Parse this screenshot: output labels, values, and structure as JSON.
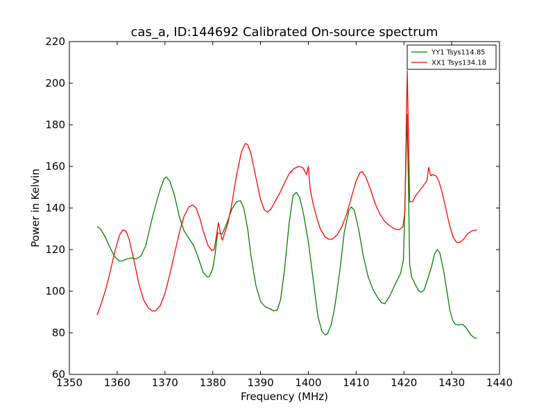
{
  "chart_data": {
    "type": "line",
    "title": "cas_a, ID:144692 Calibrated On-source spectrum",
    "xlabel": "Frequency (MHz)",
    "ylabel": "Power in Kelvin",
    "xlim": [
      1350,
      1440
    ],
    "ylim": [
      60,
      220
    ],
    "xticks": [
      1350,
      1360,
      1370,
      1380,
      1390,
      1400,
      1410,
      1420,
      1430,
      1440
    ],
    "yticks": [
      60,
      80,
      100,
      120,
      140,
      160,
      180,
      200,
      220
    ],
    "grid": false,
    "legend_position": "top-right",
    "series": [
      {
        "name": "YY1 Tsys114.85",
        "color": "#008000",
        "points": [
          [
            1355.8,
            131
          ],
          [
            1356.5,
            130
          ],
          [
            1357.5,
            126
          ],
          [
            1358.5,
            121
          ],
          [
            1359.5,
            116.5
          ],
          [
            1360.5,
            114.5
          ],
          [
            1361,
            114.5
          ],
          [
            1362,
            115.5
          ],
          [
            1363,
            116
          ],
          [
            1364,
            115.5
          ],
          [
            1365,
            117
          ],
          [
            1366,
            122
          ],
          [
            1367,
            132
          ],
          [
            1368,
            141
          ],
          [
            1369,
            149
          ],
          [
            1369.8,
            154
          ],
          [
            1370.3,
            155
          ],
          [
            1371,
            153
          ],
          [
            1372,
            146
          ],
          [
            1373,
            136
          ],
          [
            1374,
            129
          ],
          [
            1375,
            125.5
          ],
          [
            1376,
            122
          ],
          [
            1377,
            116
          ],
          [
            1378,
            109
          ],
          [
            1378.8,
            107
          ],
          [
            1379.3,
            107
          ],
          [
            1380,
            111
          ],
          [
            1380.5,
            118
          ],
          [
            1381,
            128
          ],
          [
            1382,
            127.5
          ],
          [
            1383,
            133
          ],
          [
            1384,
            139.5
          ],
          [
            1385,
            143
          ],
          [
            1385.8,
            143.5
          ],
          [
            1386.5,
            140
          ],
          [
            1387.3,
            130
          ],
          [
            1388,
            117
          ],
          [
            1389,
            103
          ],
          [
            1390,
            95
          ],
          [
            1391,
            92.5
          ],
          [
            1392,
            91.5
          ],
          [
            1392.8,
            90.5
          ],
          [
            1393.5,
            91
          ],
          [
            1394.2,
            96
          ],
          [
            1395,
            110
          ],
          [
            1396,
            133
          ],
          [
            1396.8,
            146
          ],
          [
            1397.5,
            147.5
          ],
          [
            1398.2,
            145
          ],
          [
            1399,
            137
          ],
          [
            1400,
            124
          ],
          [
            1401,
            106
          ],
          [
            1402,
            88
          ],
          [
            1402.8,
            81
          ],
          [
            1403.5,
            79
          ],
          [
            1404,
            79.5
          ],
          [
            1404.8,
            84
          ],
          [
            1405.5,
            92
          ],
          [
            1406.5,
            108
          ],
          [
            1407.5,
            128
          ],
          [
            1408.5,
            139
          ],
          [
            1409,
            140.5
          ],
          [
            1409.6,
            139
          ],
          [
            1410.5,
            130
          ],
          [
            1411.5,
            117
          ],
          [
            1412.5,
            107
          ],
          [
            1413.5,
            101
          ],
          [
            1414.5,
            97
          ],
          [
            1415.3,
            94.5
          ],
          [
            1416,
            94
          ],
          [
            1417,
            97.5
          ],
          [
            1418,
            102.5
          ],
          [
            1419.3,
            108.5
          ],
          [
            1419.9,
            115
          ],
          [
            1420.3,
            150
          ],
          [
            1420.65,
            185
          ],
          [
            1420.95,
            150
          ],
          [
            1421.2,
            113
          ],
          [
            1421.6,
            107
          ],
          [
            1422.3,
            103.5
          ],
          [
            1423,
            100.5
          ],
          [
            1423.6,
            99.5
          ],
          [
            1424.2,
            100.5
          ],
          [
            1425,
            106
          ],
          [
            1425.8,
            112
          ],
          [
            1426.4,
            118
          ],
          [
            1427,
            120
          ],
          [
            1427.5,
            118.5
          ],
          [
            1428.3,
            110
          ],
          [
            1429,
            100
          ],
          [
            1429.6,
            91
          ],
          [
            1430.2,
            86
          ],
          [
            1430.8,
            84
          ],
          [
            1431.5,
            83.8
          ],
          [
            1432.3,
            84
          ],
          [
            1433,
            82.5
          ],
          [
            1434,
            79
          ],
          [
            1434.8,
            77.5
          ],
          [
            1435.3,
            77.5
          ]
        ]
      },
      {
        "name": "XX1 Tsys134.18",
        "color": "#ff0000",
        "points": [
          [
            1355.8,
            88.5
          ],
          [
            1356.5,
            93
          ],
          [
            1357.5,
            100
          ],
          [
            1358.5,
            109
          ],
          [
            1359.5,
            119
          ],
          [
            1360.5,
            127
          ],
          [
            1361.2,
            129.5
          ],
          [
            1361.8,
            129
          ],
          [
            1362.5,
            125
          ],
          [
            1363.5,
            115
          ],
          [
            1364.5,
            104
          ],
          [
            1365.5,
            96
          ],
          [
            1366.5,
            92
          ],
          [
            1367.3,
            90.5
          ],
          [
            1368,
            90.5
          ],
          [
            1369,
            93
          ],
          [
            1370,
            99
          ],
          [
            1371,
            108
          ],
          [
            1372,
            118
          ],
          [
            1373,
            128
          ],
          [
            1374,
            136
          ],
          [
            1375,
            140.5
          ],
          [
            1375.8,
            141.5
          ],
          [
            1376.5,
            140
          ],
          [
            1377.3,
            135
          ],
          [
            1378,
            129
          ],
          [
            1379,
            122
          ],
          [
            1379.8,
            119.5
          ],
          [
            1380.3,
            120
          ],
          [
            1380.8,
            127
          ],
          [
            1381.2,
            133
          ],
          [
            1381.6,
            128
          ],
          [
            1382,
            124.5
          ],
          [
            1382.5,
            128
          ],
          [
            1383.2,
            133
          ],
          [
            1384,
            142
          ],
          [
            1385,
            156
          ],
          [
            1386,
            167
          ],
          [
            1386.8,
            171
          ],
          [
            1387.3,
            170.5
          ],
          [
            1388,
            166
          ],
          [
            1389,
            155
          ],
          [
            1390,
            144
          ],
          [
            1390.8,
            139
          ],
          [
            1391.5,
            138
          ],
          [
            1392.2,
            139.5
          ],
          [
            1393,
            143
          ],
          [
            1394,
            147
          ],
          [
            1395,
            152
          ],
          [
            1396,
            156.5
          ],
          [
            1397,
            159
          ],
          [
            1398,
            160
          ],
          [
            1398.8,
            159.5
          ],
          [
            1399.3,
            157.5
          ],
          [
            1399.6,
            156
          ],
          [
            1400,
            160
          ],
          [
            1400.4,
            149
          ],
          [
            1401,
            142
          ],
          [
            1401.8,
            135
          ],
          [
            1402.5,
            130
          ],
          [
            1403.5,
            126
          ],
          [
            1404.3,
            125
          ],
          [
            1405,
            125
          ],
          [
            1406,
            127
          ],
          [
            1407,
            131
          ],
          [
            1408,
            137
          ],
          [
            1409,
            145
          ],
          [
            1410,
            153
          ],
          [
            1410.8,
            157
          ],
          [
            1411.3,
            157.5
          ],
          [
            1412,
            155
          ],
          [
            1413,
            149
          ],
          [
            1414,
            142
          ],
          [
            1415,
            137
          ],
          [
            1416,
            133.5
          ],
          [
            1417,
            131.5
          ],
          [
            1418,
            130
          ],
          [
            1419,
            129.5
          ],
          [
            1419.8,
            131
          ],
          [
            1420.2,
            138
          ],
          [
            1420.5,
            180
          ],
          [
            1420.7,
            206
          ],
          [
            1420.95,
            175
          ],
          [
            1421.2,
            143
          ],
          [
            1421.8,
            143
          ],
          [
            1422.5,
            146
          ],
          [
            1423.5,
            149
          ],
          [
            1424.3,
            151.5
          ],
          [
            1424.8,
            153
          ],
          [
            1425.2,
            159.5
          ],
          [
            1425.6,
            155.5
          ],
          [
            1426,
            156
          ],
          [
            1426.7,
            155.5
          ],
          [
            1427.3,
            153
          ],
          [
            1428,
            147.5
          ],
          [
            1428.8,
            139.5
          ],
          [
            1429.5,
            132
          ],
          [
            1430.3,
            126
          ],
          [
            1431,
            123.5
          ],
          [
            1431.7,
            123.5
          ],
          [
            1432.5,
            125
          ],
          [
            1433.3,
            127.5
          ],
          [
            1434.2,
            129
          ],
          [
            1435.3,
            129.5
          ]
        ]
      }
    ]
  }
}
